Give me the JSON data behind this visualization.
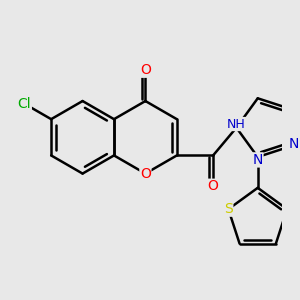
{
  "background_color": "#e8e8e8",
  "bond_color": "#000000",
  "bond_width": 1.8,
  "atom_colors": {
    "O": "#ff0000",
    "N": "#0000cc",
    "S": "#cccc00",
    "Cl": "#00aa00"
  },
  "font_size": 10,
  "figsize": [
    3.0,
    3.0
  ],
  "dpi": 100
}
